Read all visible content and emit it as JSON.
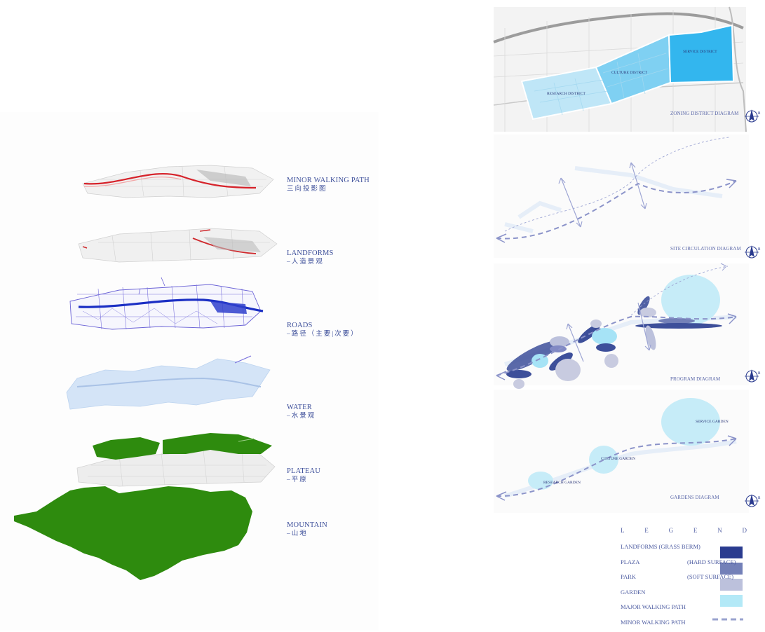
{
  "layers": [
    {
      "title": "MINOR WALKING PATH",
      "subtitle": "三向投影图"
    },
    {
      "title": "LANDFORMS",
      "subtitle": "–人造景观"
    },
    {
      "title": "ROADS",
      "subtitle": "–路径（主要|次要）"
    },
    {
      "title": "WATER",
      "subtitle": "–水景观"
    },
    {
      "title": "PLATEAU",
      "subtitle": "–平原"
    },
    {
      "title": "MOUNTAIN",
      "subtitle": "–山地"
    }
  ],
  "zoning": {
    "title": "ZONING DISTRICT DIAGRAM",
    "districts": [
      "RESEARCH DISTRICT",
      "CULTURE DISTRICT",
      "SERVICE DISTRICT"
    ]
  },
  "circulation": {
    "title": "SITE CIRCULATION DIAGRAM"
  },
  "program": {
    "title": "PROGRAM DIAGRAM"
  },
  "gardens": {
    "title": "GARDENS DIAGRAM",
    "items": [
      "SERVICE GARDEN",
      "CULTURE GARDEN",
      "RESEARCH GARDEN"
    ]
  },
  "north_label": "n",
  "legend": {
    "letters": [
      "L",
      "E",
      "G",
      "E",
      "N",
      "D"
    ],
    "items": [
      {
        "label": "LANDFORMS (GRASS BERM)",
        "note": "",
        "color": "#2a3b8f"
      },
      {
        "label": "PLAZA",
        "note": "(HARD SURFACE)",
        "color": "#7380b8"
      },
      {
        "label": "PARK",
        "note": "(SOFT SURFACE)",
        "color": "#bcc1dc"
      },
      {
        "label": "GARDEN",
        "note": "",
        "color": "#b3e9f7"
      },
      {
        "label": "MAJOR WALKING PATH",
        "note": "",
        "color": ""
      },
      {
        "label": "MINOR WALKING PATH",
        "note": "",
        "color": "#9aa3cf"
      }
    ]
  },
  "colors": {
    "accent": "#3d4f9a",
    "green": "#2e8b0e",
    "blue": "#2b3bbf",
    "light_blue": "#3fb8ee"
  }
}
